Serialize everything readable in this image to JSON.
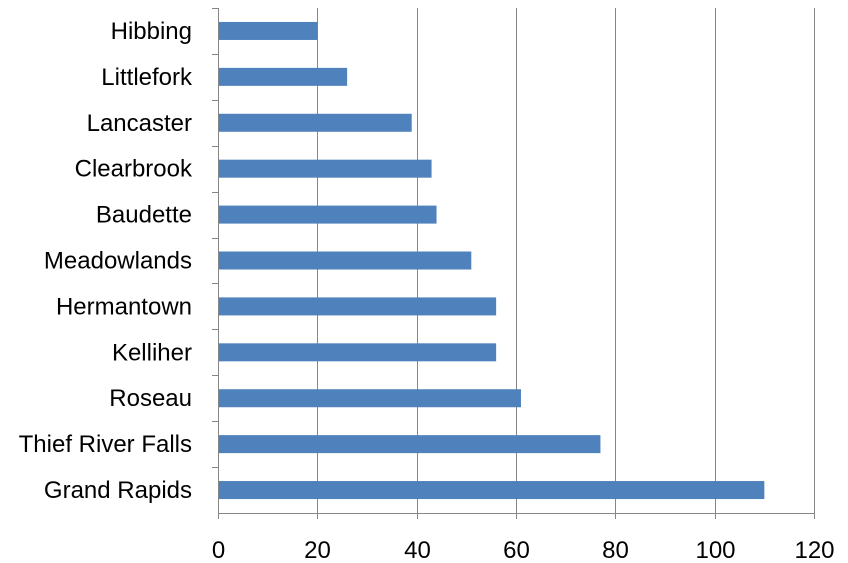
{
  "chart_data": {
    "type": "bar",
    "orientation": "horizontal",
    "title": "",
    "xlabel": "",
    "ylabel": "",
    "categories": [
      "Hibbing",
      "Littlefork",
      "Lancaster",
      "Clearbrook",
      "Baudette",
      "Meadowlands",
      "Hermantown",
      "Kelliher",
      "Roseau",
      "Thief River Falls",
      "Grand Rapids"
    ],
    "values": [
      20,
      26,
      39,
      43,
      44,
      51,
      56,
      56,
      61,
      77,
      110
    ],
    "xlim": [
      0,
      120
    ],
    "xticks": [
      "0",
      "20",
      "40",
      "60",
      "80",
      "100",
      "120"
    ],
    "grid": true,
    "legend": "none",
    "bar_color": "#4f81bd"
  }
}
